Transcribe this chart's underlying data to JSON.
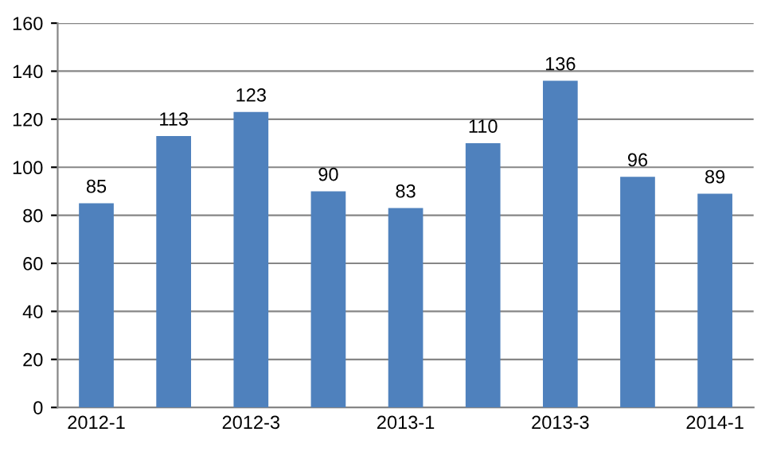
{
  "chart_data": {
    "type": "bar",
    "categories": [
      "2012-1",
      null,
      "2012-3",
      null,
      "2013-1",
      null,
      "2013-3",
      null,
      "2014-1"
    ],
    "values": [
      85,
      113,
      123,
      90,
      83,
      110,
      136,
      96,
      89
    ],
    "color": "#4f81bd",
    "ylim": [
      0,
      160
    ],
    "yticks": [
      0,
      20,
      40,
      60,
      80,
      100,
      120,
      140,
      160
    ],
    "grid": "y",
    "data_labels": true,
    "legend": false
  }
}
